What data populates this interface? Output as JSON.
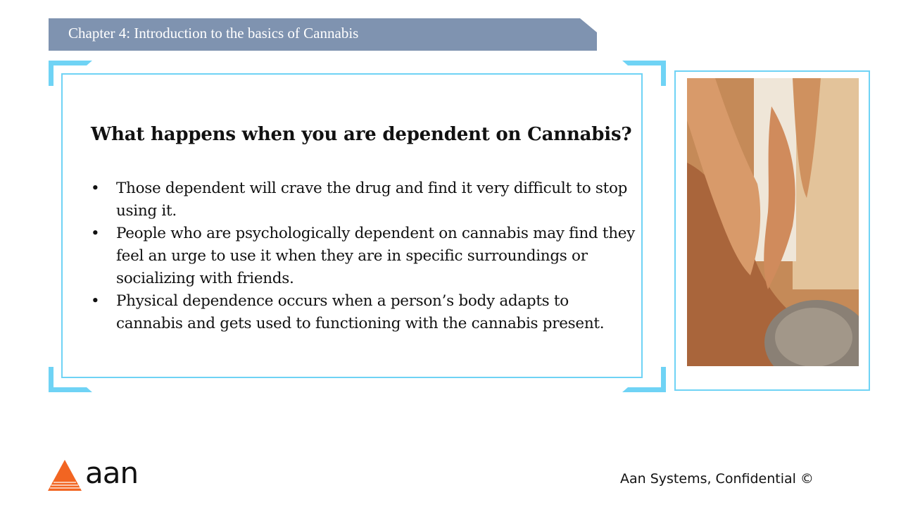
{
  "header": {
    "chapter_title": "Chapter 4: Introduction to the basics of Cannabis"
  },
  "content": {
    "heading": "What happens when you are dependent on Cannabis?",
    "bullets": [
      "Those dependent will crave the drug and find it very difficult to stop using it.",
      "People who are psychologically dependent on cannabis may find they feel an urge to use it when they are in specific surroundings or socializing with friends.",
      "Physical dependence occurs when a person’s body adapts to cannabis and gets used to functioning with the cannabis present."
    ]
  },
  "image": {
    "icon": "massage-photo"
  },
  "footer": {
    "logo_text": "aan",
    "confidential": "Aan Systems, Confidential ©"
  },
  "colors": {
    "banner": "#7f93b0",
    "frame": "#6fd3f5",
    "logo_orange": "#f26522"
  }
}
